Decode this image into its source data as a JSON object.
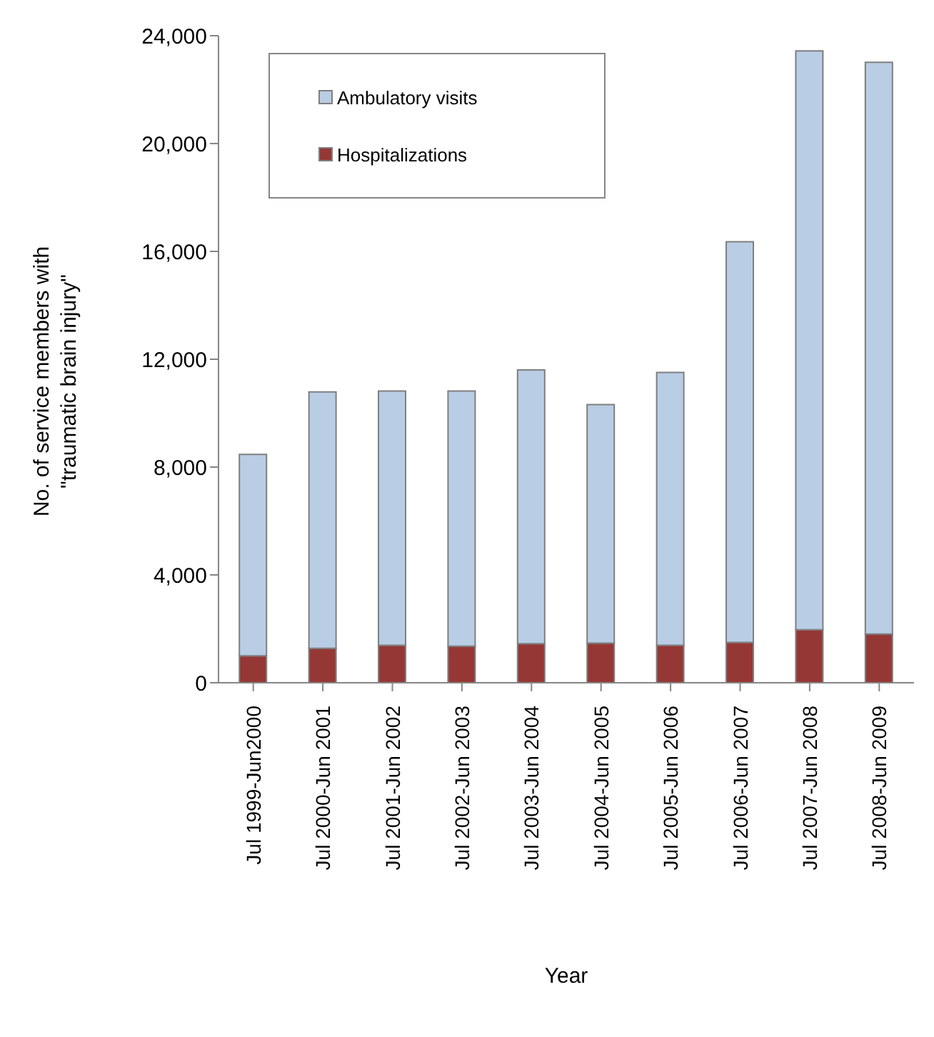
{
  "chart_data": {
    "type": "bar",
    "stacked": true,
    "xlabel": "Year",
    "ylabel": "No. of service members with\n\"traumatic brain injury\"",
    "categories": [
      "Jul 1999-Jun2000",
      "Jul 2000-Jun 2001",
      "Jul 2001-Jun 2002",
      "Jul 2002-Jun 2003",
      "Jul 2003-Jun 2004",
      "Jul 2004-Jun 2005",
      "Jul 2005-Jun 2006",
      "Jul 2006-Jun 2007",
      "Jul 2007-Jun 2008",
      "Jul 2008-Jun 2009"
    ],
    "series": [
      {
        "name": "Hospitalizations",
        "color": "#953735",
        "values": [
          1000,
          1280,
          1390,
          1360,
          1450,
          1470,
          1390,
          1500,
          1970,
          1810
        ]
      },
      {
        "name": "Ambulatory visits",
        "color": "#b9cde5",
        "values": [
          7470,
          9510,
          9430,
          9460,
          10150,
          8850,
          10120,
          14860,
          21470,
          21200
        ]
      }
    ],
    "ylim": [
      0,
      24000
    ],
    "yticks": [
      {
        "value": 0,
        "label": "0"
      },
      {
        "value": 4000,
        "label": "4,000"
      },
      {
        "value": 8000,
        "label": "8,000"
      },
      {
        "value": 12000,
        "label": "12,000"
      },
      {
        "value": 16000,
        "label": "16,000"
      },
      {
        "value": 20000,
        "label": "20,000"
      },
      {
        "value": 24000,
        "label": "24,000"
      }
    ],
    "grid": false,
    "legend": "top left"
  }
}
